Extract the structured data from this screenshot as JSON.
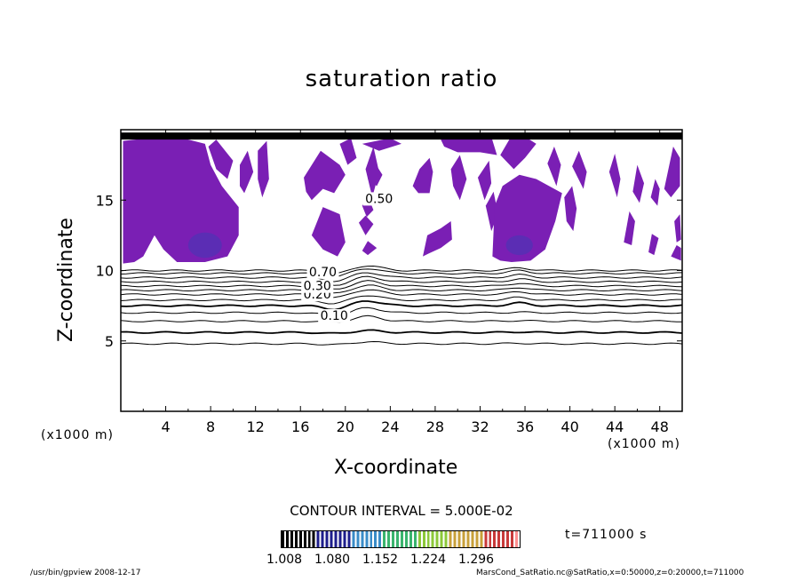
{
  "chart_data": {
    "type": "heatmap",
    "title": "saturation ratio",
    "xlabel": "X-coordinate",
    "ylabel": "Z-coordinate",
    "x_unit": "(x1000 m)",
    "xlim": [
      0,
      50
    ],
    "ylim": [
      0,
      20
    ],
    "x_ticks": [
      4,
      8,
      12,
      16,
      20,
      24,
      28,
      32,
      36,
      40,
      44,
      48
    ],
    "y_ticks": [
      5,
      10,
      15
    ],
    "contour_interval_text": "CONTOUR INTERVAL = 5.000E-02",
    "contour_labels": [
      "0.10",
      "0.20",
      "0.30",
      "0.50",
      "0.70"
    ],
    "time_text": "t=711000 s",
    "colorbar": {
      "labels": [
        "1.008",
        "1.080",
        "1.152",
        "1.224",
        "1.296"
      ],
      "colors": [
        "#000000",
        "#1e1e8c",
        "#3a8cc8",
        "#3ab46e",
        "#8cc83a",
        "#c8a03a",
        "#c83a3a",
        "#ff9090"
      ]
    },
    "supersaturated_regions_color": "#7a1fb4",
    "supersaturated_core_color": "#3c3cb4",
    "contour_lines_z": [
      4.8,
      5.6,
      6.4,
      7.0,
      7.5,
      7.9,
      8.3,
      8.6,
      8.9,
      9.2,
      9.5,
      9.8,
      10.0
    ]
  },
  "footer": {
    "left": "/usr/bin/gpview   2008-12-17",
    "right": "MarsCond_SatRatio.nc@SatRatio,x=0:50000,z=0:20000,t=711000"
  }
}
